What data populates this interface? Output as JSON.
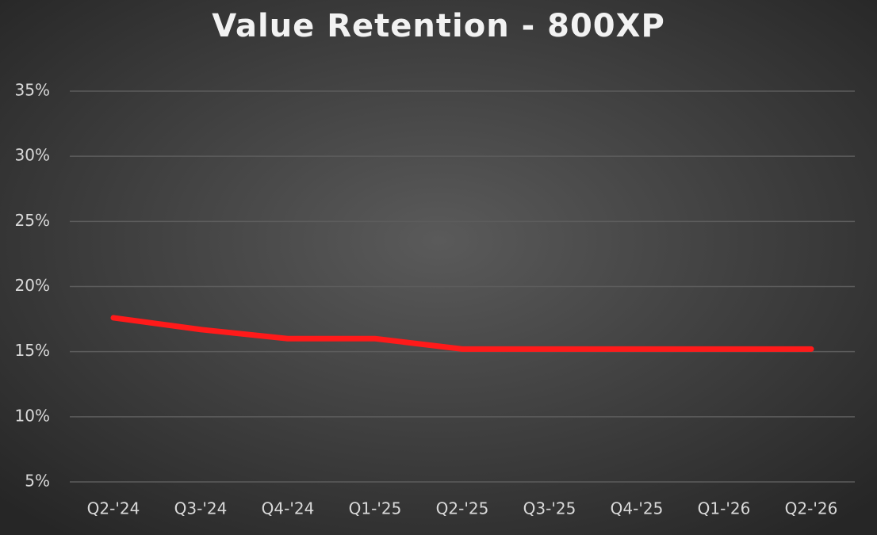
{
  "chart_data": {
    "type": "line",
    "title": "Value Retention - 800XP",
    "categories": [
      "Q2-'24",
      "Q3-'24",
      "Q4-'24",
      "Q1-'25",
      "Q2-'25",
      "Q3-'25",
      "Q4-'25",
      "Q1-'26",
      "Q2-'26"
    ],
    "series": [
      {
        "color": "#ff1a1a",
        "values": [
          17.6,
          16.7,
          16.0,
          16.0,
          15.2,
          15.2,
          15.2,
          15.2,
          15.2
        ]
      }
    ],
    "ylim": [
      5,
      35
    ],
    "yticks": [
      {
        "value": 5,
        "label": "5%"
      },
      {
        "value": 10,
        "label": "10%"
      },
      {
        "value": 15,
        "label": "15%"
      },
      {
        "value": 20,
        "label": "20%"
      },
      {
        "value": 25,
        "label": "25%"
      },
      {
        "value": 30,
        "label": "30%"
      },
      {
        "value": 35,
        "label": "35%"
      }
    ],
    "grid": true
  }
}
